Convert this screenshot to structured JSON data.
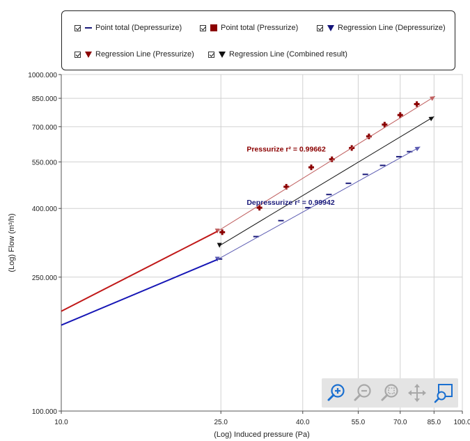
{
  "chart_data": {
    "type": "scatter",
    "xscale": "log",
    "yscale": "log",
    "xlabel": "(Log) Induced pressure (Pa)",
    "ylabel": "(Log) Flow  (m³/h)",
    "xlim": [
      10,
      100
    ],
    "ylim": [
      100,
      1000
    ],
    "x_ticks": [
      10,
      25,
      40,
      55,
      70,
      85,
      100
    ],
    "x_tick_labels": [
      "10.0",
      "25.0",
      "40.0",
      "55.0",
      "70.0",
      "85.0",
      "100.0"
    ],
    "y_ticks": [
      100,
      250,
      400,
      550,
      700,
      850,
      1000
    ],
    "y_tick_labels": [
      "100.000",
      "250.000",
      "400.000",
      "550.000",
      "700.000",
      "850.000",
      "1000.000"
    ],
    "grid": true,
    "legend_position": "top",
    "series": [
      {
        "name": "Point total (Depressurize)",
        "kind": "points",
        "marker": "dash",
        "color": "#1a1a7a",
        "points": [
          [
            24.8,
            283
          ],
          [
            30.6,
            330
          ],
          [
            35.3,
            368
          ],
          [
            41.2,
            402
          ],
          [
            46.5,
            440
          ],
          [
            52.0,
            475
          ],
          [
            57.3,
            505
          ],
          [
            63.3,
            537
          ],
          [
            69.5,
            570
          ],
          [
            73.9,
            590
          ]
        ]
      },
      {
        "name": "Point total (Pressurize)",
        "kind": "points",
        "marker": "plus",
        "color": "#8b0000",
        "points": [
          [
            25.2,
            340
          ],
          [
            31.2,
            402
          ],
          [
            36.4,
            464
          ],
          [
            42.0,
            530
          ],
          [
            47.3,
            560
          ],
          [
            53.0,
            605
          ],
          [
            58.5,
            655
          ],
          [
            64.0,
            710
          ],
          [
            70.0,
            758
          ],
          [
            77.0,
            817
          ]
        ]
      },
      {
        "name": "Regression Line (Depressurize)",
        "kind": "line",
        "color": "#5b5bb2",
        "from": [
          24.5,
          282
        ],
        "to": [
          78.5,
          610
        ]
      },
      {
        "name": "Regression Line (Pressurize)",
        "kind": "line",
        "color": "#c06060",
        "from": [
          24.5,
          342
        ],
        "to": [
          85.5,
          862
        ]
      },
      {
        "name": "Regression Line (Combined result)",
        "kind": "line",
        "color": "#111111",
        "from": [
          24.8,
          310
        ],
        "to": [
          85.0,
          750
        ]
      },
      {
        "kind": "line",
        "color": "#1515b5",
        "width": 2,
        "from": [
          10.0,
          180
        ],
        "to": [
          24.5,
          282
        ]
      },
      {
        "kind": "line",
        "color": "#c01818",
        "width": 2,
        "from": [
          10.0,
          198
        ],
        "to": [
          24.5,
          342
        ]
      }
    ],
    "annotations": [
      {
        "text": "Pressurize r² = 0.99662",
        "at": [
          29.0,
          590
        ],
        "color": "#8b0000"
      },
      {
        "text": "Depressurize r² = 0.99942",
        "at": [
          29.0,
          410
        ],
        "color": "#1a1a7a"
      }
    ]
  },
  "legend": {
    "items": [
      {
        "label": "Point total (Depressurize)",
        "symbol": "dash",
        "color": "#1a1a7a",
        "checked": true
      },
      {
        "label": "Point total (Pressurize)",
        "symbol": "square",
        "color": "#8b0000",
        "checked": true
      },
      {
        "label": "Regression Line (Depressurize)",
        "symbol": "triangle-down",
        "color": "#14147a",
        "checked": true
      },
      {
        "label": "Regression Line (Pressurize)",
        "symbol": "triangle-down",
        "color": "#8b0000",
        "checked": true
      },
      {
        "label": "Regression Line (Combined result)",
        "symbol": "triangle-down",
        "color": "#111111",
        "checked": true
      }
    ]
  },
  "toolbar": {
    "icons": [
      "zoom-in-icon",
      "zoom-out-icon",
      "zoom-reset-icon",
      "pan-icon",
      "zoom-region-icon"
    ],
    "accent": "#1a6fd0",
    "disabled": "#a8a8a8"
  }
}
